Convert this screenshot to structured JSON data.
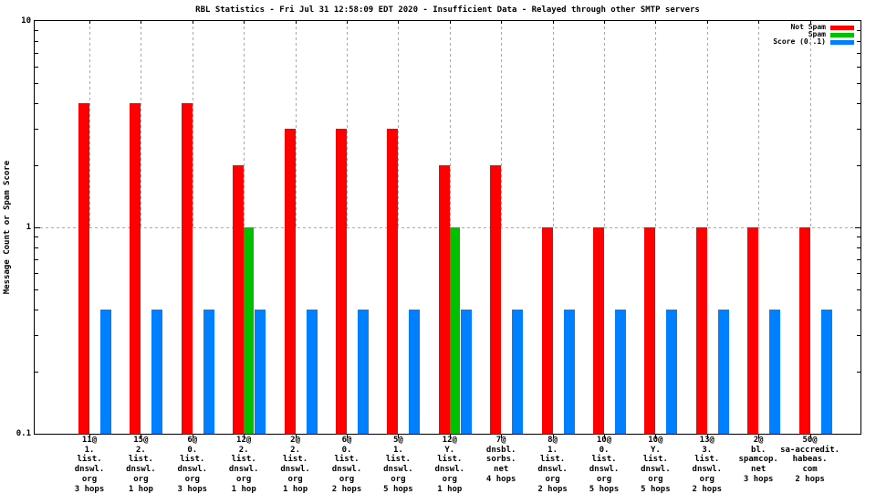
{
  "chart_data": {
    "type": "bar",
    "title": "RBL Statistics - Fri Jul 31 12:58:09 EDT 2020 - Insufficient Data - Relayed through other SMTP servers",
    "ylabel": "Message Count or Spam Score",
    "xlabel": "",
    "yscale": "log",
    "ylim": [
      0.1,
      10
    ],
    "ytick_values": [
      10,
      1,
      0.1
    ],
    "ytick_labels": [
      "10",
      "1",
      "0.1"
    ],
    "grid": {
      "horizontal_dashed_at": 1,
      "vertical_dashed": "at each category center, from top border down to y=1",
      "color": "#a9a9a9"
    },
    "legend": {
      "position": "top-right-inside",
      "entries": [
        "Not Spam",
        "Spam",
        "Score (0..1)"
      ]
    },
    "categories": [
      [
        "11@",
        "1.",
        "list.",
        "dnswl.",
        "org",
        "3 hops"
      ],
      [
        "15@",
        "2.",
        "list.",
        "dnswl.",
        "org",
        "1 hop"
      ],
      [
        "6@",
        "0.",
        "list.",
        "dnswl.",
        "org",
        "3 hops"
      ],
      [
        "12@",
        "2.",
        "list.",
        "dnswl.",
        "org",
        "1 hop"
      ],
      [
        "2@",
        "2.",
        "list.",
        "dnswl.",
        "org",
        "1 hop"
      ],
      [
        "6@",
        "0.",
        "list.",
        "dnswl.",
        "org",
        "2 hops"
      ],
      [
        "5@",
        "1.",
        "list.",
        "dnswl.",
        "org",
        "5 hops"
      ],
      [
        "12@",
        "Y.",
        "list.",
        "dnswl.",
        "org",
        "1 hop"
      ],
      [
        "7@",
        "dnsbl.",
        "sorbs.",
        "net",
        "4 hops"
      ],
      [
        "8@",
        "1.",
        "list.",
        "dnswl.",
        "org",
        "2 hops"
      ],
      [
        "10@",
        "0.",
        "list.",
        "dnswl.",
        "org",
        "5 hops"
      ],
      [
        "10@",
        "Y.",
        "list.",
        "dnswl.",
        "org",
        "5 hops"
      ],
      [
        "13@",
        "3.",
        "list.",
        "dnswl.",
        "org",
        "2 hops"
      ],
      [
        "2@",
        "bl.",
        "spamcop.",
        "net",
        "3 hops"
      ],
      [
        "50@",
        "sa-accredit.",
        "habeas.",
        "com",
        "2 hops"
      ]
    ],
    "series": [
      {
        "name": "Not Spam",
        "color": "#ff0000",
        "values": [
          4,
          4,
          4,
          2,
          3,
          3,
          3,
          2,
          2,
          1,
          1,
          1,
          1,
          1,
          1
        ]
      },
      {
        "name": "Spam",
        "color": "#00c000",
        "values": [
          0,
          0,
          0,
          1,
          0,
          0,
          0,
          1,
          0,
          0,
          0,
          0,
          0,
          0,
          0
        ]
      },
      {
        "name": "Score (0..1)",
        "color": "#0080ff",
        "values": [
          0.4,
          0.4,
          0.4,
          0.4,
          0.4,
          0.4,
          0.4,
          0.4,
          0.4,
          0.4,
          0.4,
          0.4,
          0.4,
          0.4,
          0.4
        ]
      }
    ]
  }
}
